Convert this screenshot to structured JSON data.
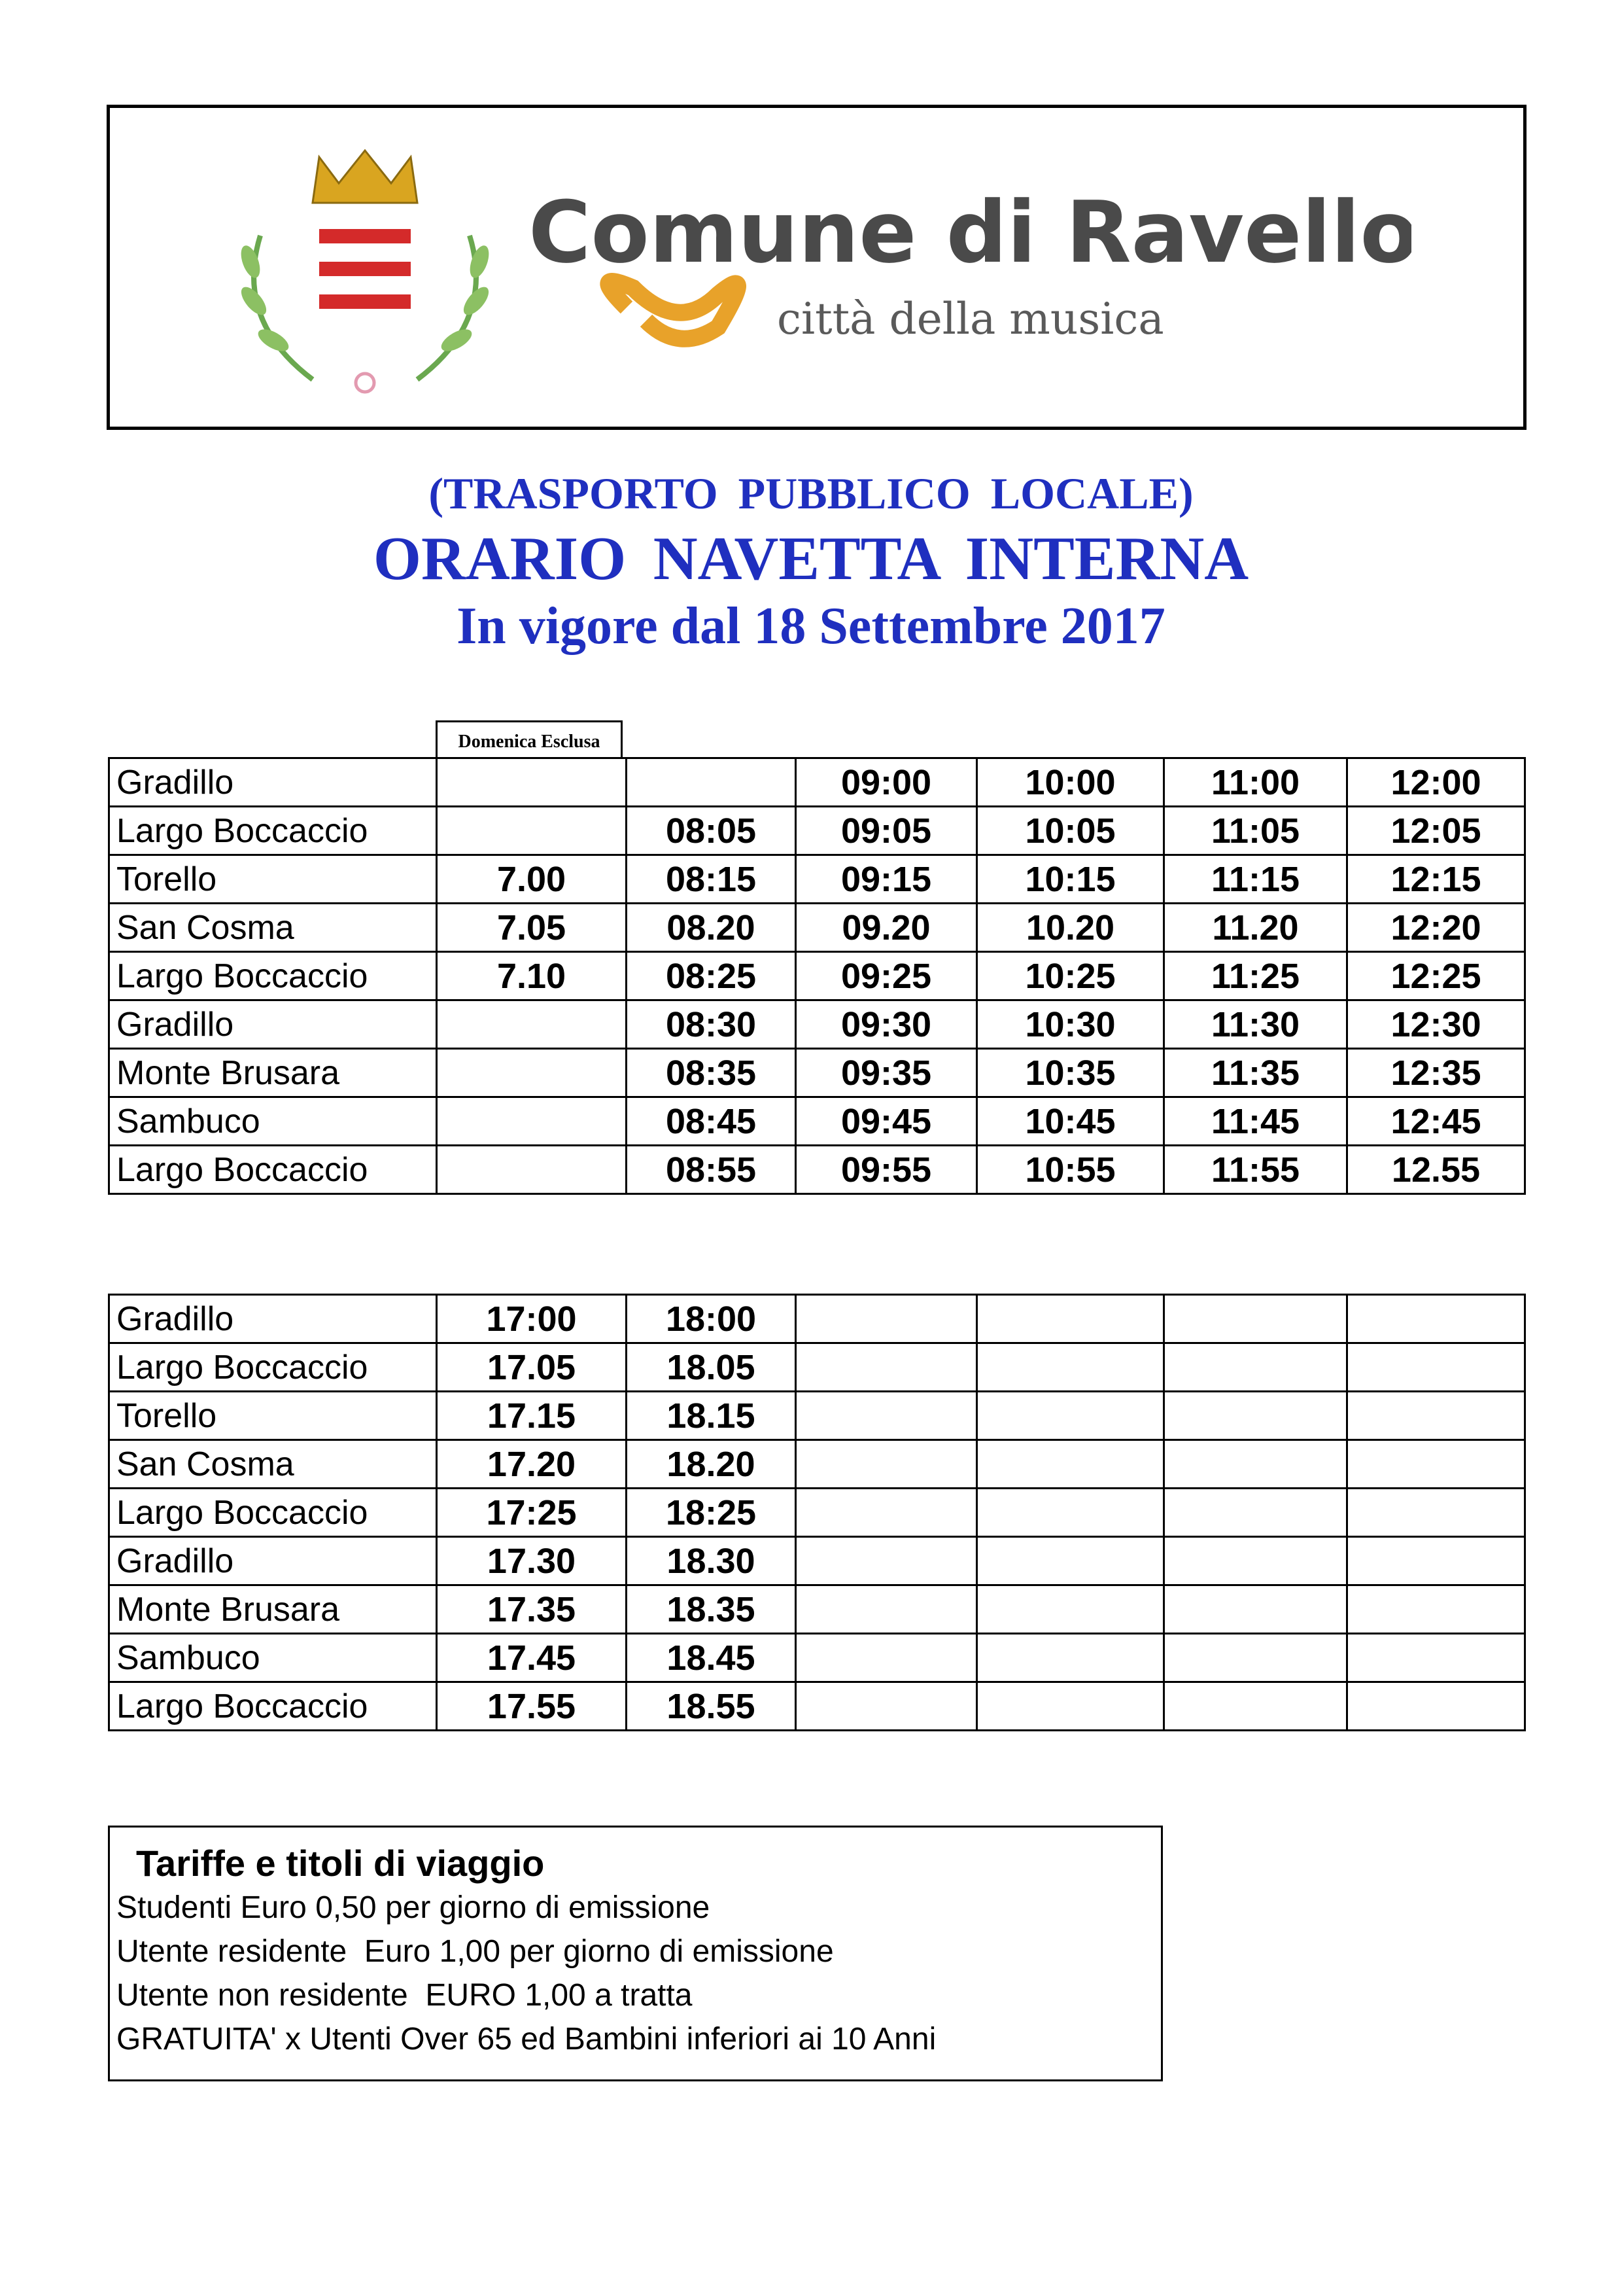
{
  "logo": {
    "name": "Comune di Ravello",
    "tagline": "città della musica"
  },
  "header": {
    "line1": "(TRASPORTO  PUBBLICO  LOCALE)",
    "line2": "ORARIO  NAVETTA INTERNA",
    "line3": "In vigore dal  18 Settembre 2017"
  },
  "column_note": "Domenica Esclusa",
  "morning": {
    "rows": [
      {
        "stop": "Gradillo",
        "times": [
          "",
          "",
          "09:00",
          "10:00",
          "11:00",
          "12:00"
        ]
      },
      {
        "stop": "Largo Boccaccio",
        "times": [
          "",
          "08:05",
          "09:05",
          "10:05",
          "11:05",
          "12:05"
        ]
      },
      {
        "stop": "Torello",
        "times": [
          "7.00",
          "08:15",
          "09:15",
          "10:15",
          "11:15",
          "12:15"
        ]
      },
      {
        "stop": "San Cosma",
        "times": [
          "7.05",
          "08.20",
          "09.20",
          "10.20",
          "11.20",
          "12:20"
        ]
      },
      {
        "stop": "Largo Boccaccio",
        "times": [
          "7.10",
          "08:25",
          "09:25",
          "10:25",
          "11:25",
          "12:25"
        ]
      },
      {
        "stop": "Gradillo",
        "times": [
          "",
          "08:30",
          "09:30",
          "10:30",
          "11:30",
          "12:30"
        ]
      },
      {
        "stop": "Monte Brusara",
        "times": [
          "",
          "08:35",
          "09:35",
          "10:35",
          "11:35",
          "12:35"
        ]
      },
      {
        "stop": "Sambuco",
        "times": [
          "",
          "08:45",
          "09:45",
          "10:45",
          "11:45",
          "12:45"
        ]
      },
      {
        "stop": "Largo Boccaccio",
        "times": [
          "",
          "08:55",
          "09:55",
          "10:55",
          "11:55",
          "12.55"
        ]
      }
    ]
  },
  "afternoon": {
    "rows": [
      {
        "stop": "Gradillo",
        "times": [
          "17:00",
          "18:00",
          "",
          "",
          "",
          ""
        ]
      },
      {
        "stop": "Largo Boccaccio",
        "times": [
          "17.05",
          "18.05",
          "",
          "",
          "",
          ""
        ]
      },
      {
        "stop": "Torello",
        "times": [
          "17.15",
          "18.15",
          "",
          "",
          "",
          ""
        ]
      },
      {
        "stop": "San Cosma",
        "times": [
          "17.20",
          "18.20",
          "",
          "",
          "",
          ""
        ]
      },
      {
        "stop": "Largo Boccaccio",
        "times": [
          "17:25",
          "18:25",
          "",
          "",
          "",
          ""
        ]
      },
      {
        "stop": "Gradillo",
        "times": [
          "17.30",
          "18.30",
          "",
          "",
          "",
          ""
        ]
      },
      {
        "stop": "Monte Brusara",
        "times": [
          "17.35",
          "18.35",
          "",
          "",
          "",
          ""
        ]
      },
      {
        "stop": "Sambuco",
        "times": [
          "17.45",
          "18.45",
          "",
          "",
          "",
          ""
        ]
      },
      {
        "stop": "Largo Boccaccio",
        "times": [
          "17.55",
          "18.55",
          "",
          "",
          "",
          ""
        ]
      }
    ]
  },
  "fares": {
    "title": "Tariffe e titoli di viaggio",
    "lines": [
      "Studenti Euro 0,50 per giorno di emissione",
      "Utente residente  Euro 1,00 per giorno di emissione",
      "Utente non residente  EURO 1,00 a tratta",
      "GRATUITA' x Utenti Over 65 ed Bambini inferiori ai 10 Anni"
    ]
  },
  "colors": {
    "title_blue": "#1f2fbf",
    "crest_red": "#d42a2a",
    "crown_gold": "#d9a520",
    "logo_text": "#4a4a4a",
    "music_orange": "#e8a22a"
  }
}
